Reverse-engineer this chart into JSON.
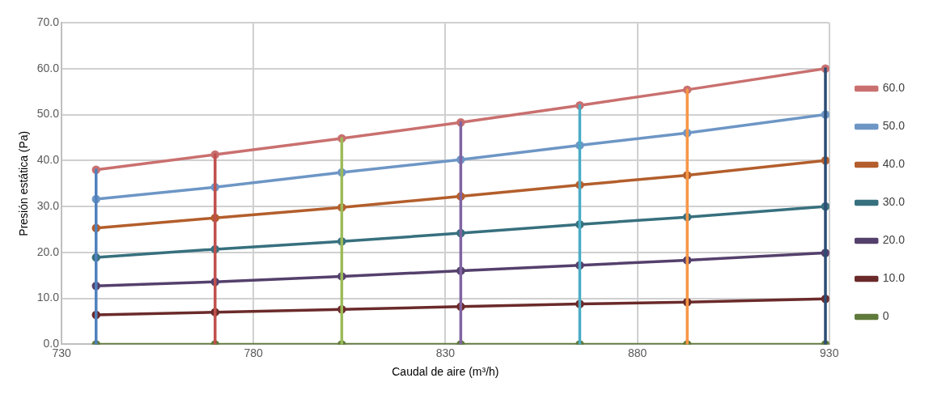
{
  "chart_data": {
    "type": "line",
    "xlabel": "Caudal de aire (m³/h)",
    "ylabel": "Presión estática (Pa)",
    "xlim": [
      730,
      930
    ],
    "xticks": [
      730,
      780,
      830,
      880,
      930
    ],
    "ylim": [
      0,
      70
    ],
    "yticks": [
      {
        "value": 0,
        "label": "0.0"
      },
      {
        "value": 10,
        "label": "10.0"
      },
      {
        "value": 20,
        "label": "20.0"
      },
      {
        "value": 30,
        "label": "30.0"
      },
      {
        "value": 40,
        "label": "40.0"
      },
      {
        "value": 50,
        "label": "50.0"
      },
      {
        "value": 60,
        "label": "60.0"
      },
      {
        "value": 70,
        "label": "70.0"
      }
    ],
    "grid": true,
    "legend": "right",
    "marker": "circle",
    "line_style": "solid",
    "x": [
      739,
      770,
      803,
      834,
      865,
      893,
      929
    ],
    "series": [
      {
        "name": "60.0",
        "color": "#c9706f",
        "values": [
          38.0,
          41.3,
          44.8,
          48.3,
          52.0,
          55.4,
          60.0
        ]
      },
      {
        "name": "50.0",
        "color": "#6d96c5",
        "values": [
          31.6,
          34.2,
          37.4,
          40.2,
          43.3,
          46.0,
          50.0
        ]
      },
      {
        "name": "40.0",
        "color": "#b35e2c",
        "values": [
          25.3,
          27.5,
          29.8,
          32.2,
          34.7,
          36.8,
          40.0
        ]
      },
      {
        "name": "30.0",
        "color": "#37707e",
        "values": [
          18.9,
          20.7,
          22.4,
          24.2,
          26.1,
          27.7,
          30.0
        ]
      },
      {
        "name": "20.0",
        "color": "#54406c",
        "values": [
          12.7,
          13.6,
          14.8,
          16.0,
          17.2,
          18.3,
          19.9
        ]
      },
      {
        "name": "10.0",
        "color": "#6b2a2a",
        "values": [
          6.4,
          7.0,
          7.6,
          8.2,
          8.8,
          9.2,
          9.9
        ]
      },
      {
        "name": "0",
        "color": "#5f7a3a",
        "values": [
          0,
          0,
          0,
          0,
          0,
          0,
          0
        ]
      },
      {
        "color": "#4f81bd",
        "x": [
          739,
          739
        ],
        "values": [
          0,
          38.0
        ],
        "marker": "none"
      },
      {
        "color": "#c0504d",
        "x": [
          770,
          770
        ],
        "values": [
          0,
          41.3
        ],
        "marker": "none"
      },
      {
        "color": "#9bbb59",
        "x": [
          803,
          803
        ],
        "values": [
          0,
          44.8
        ],
        "marker": "none"
      },
      {
        "color": "#8064a2",
        "x": [
          834,
          834
        ],
        "values": [
          0,
          48.3
        ],
        "marker": "none"
      },
      {
        "color": "#4bacc6",
        "x": [
          865,
          865
        ],
        "values": [
          0,
          52.0
        ],
        "marker": "none"
      },
      {
        "color": "#f79646",
        "x": [
          893,
          893
        ],
        "values": [
          0,
          55.4
        ],
        "marker": "none"
      },
      {
        "color": "#2c4d75",
        "x": [
          929,
          929
        ],
        "values": [
          0,
          60.0
        ],
        "marker": "none"
      }
    ]
  }
}
